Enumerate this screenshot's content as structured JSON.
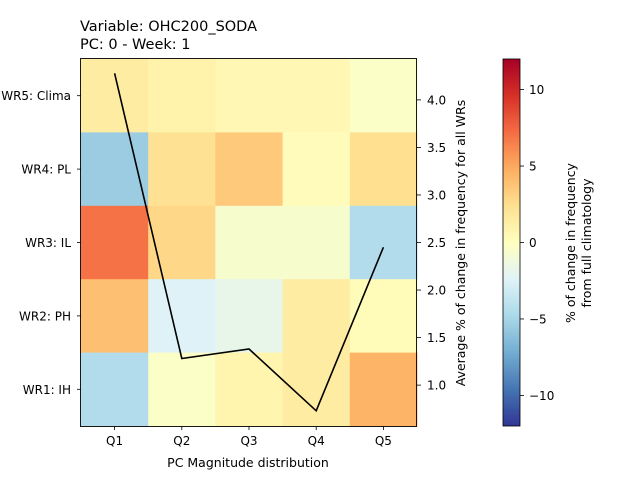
{
  "chart_data": {
    "type": "heatmap",
    "title_line1": "Variable: OHC200_SODA",
    "title_line2": "PC: 0 - Week: 1",
    "xlabel": "PC Magnitude distribution",
    "ylabel_right": "Average % of change in frequency for all WRs",
    "colorbar_label_line1": "% of change in frequency",
    "colorbar_label_line2": "from full climatology",
    "categories_x": [
      "Q1",
      "Q2",
      "Q3",
      "Q4",
      "Q5"
    ],
    "categories_y": [
      "WR5: Clima",
      "WR4: PL",
      "WR3: IL",
      "WR2: PH",
      "WR1: IH"
    ],
    "heatmap_values": [
      [
        1.5,
        1.0,
        0.6,
        0.6,
        -0.3
      ],
      [
        -5.5,
        2.3,
        3.5,
        0.2,
        2.4
      ],
      [
        7.0,
        2.8,
        -0.6,
        -0.6,
        -4.5
      ],
      [
        4.0,
        -2.5,
        -1.8,
        1.5,
        0.3
      ],
      [
        -4.5,
        -0.3,
        0.8,
        1.5,
        4.5
      ]
    ],
    "color_scale": {
      "min": -12,
      "max": 12,
      "colormap": "RdYlBu_r",
      "ticks": [
        10,
        5,
        0,
        -5,
        -10
      ],
      "tick_labels": [
        "10",
        "5",
        "0",
        "−5",
        "−10"
      ]
    },
    "line_series": {
      "name": "Average % of change in frequency for all WRs",
      "x": [
        "Q1",
        "Q2",
        "Q3",
        "Q4",
        "Q5"
      ],
      "values": [
        4.28,
        1.28,
        1.38,
        0.73,
        2.45
      ],
      "color": "#000000"
    },
    "right_axis": {
      "ylim": [
        0.57,
        4.43
      ],
      "ticks": [
        1.0,
        1.5,
        2.0,
        2.5,
        3.0,
        3.5,
        4.0
      ],
      "tick_labels": [
        "1.0",
        "1.5",
        "2.0",
        "2.5",
        "3.0",
        "3.5",
        "4.0"
      ]
    },
    "colors": {
      "cmap_stops": [
        "#313695",
        "#4575b4",
        "#74add1",
        "#abd9e9",
        "#e0f3f8",
        "#ffffbf",
        "#fee090",
        "#fdae61",
        "#f46d43",
        "#d73027",
        "#a50026"
      ]
    }
  }
}
